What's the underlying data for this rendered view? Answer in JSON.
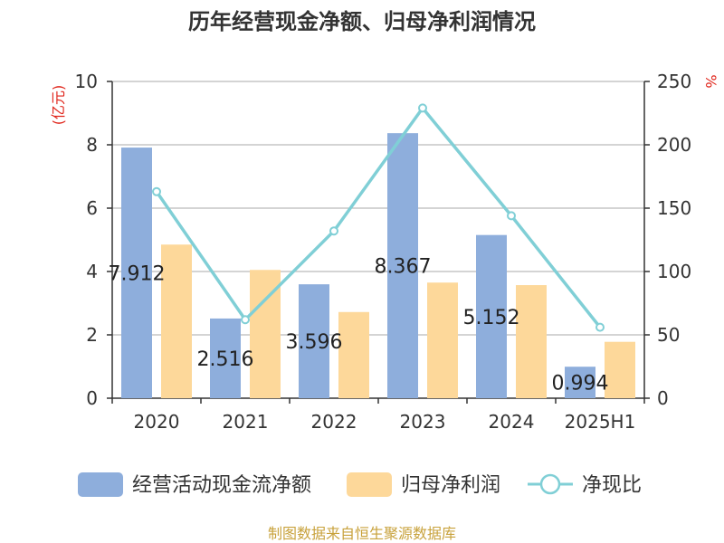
{
  "title": "历年经营现金净额、归母净利润情况",
  "source": "制图数据来自恒生聚源数据库",
  "chart_data": {
    "type": "bar",
    "categories": [
      "2020",
      "2021",
      "2022",
      "2023",
      "2024",
      "2025H1"
    ],
    "series": [
      {
        "name": "经营活动现金流净额",
        "kind": "bar",
        "axis": "left",
        "color": "#8eaedc",
        "values": [
          7.912,
          2.516,
          3.596,
          8.367,
          5.152,
          0.994
        ]
      },
      {
        "name": "归母净利润",
        "kind": "bar",
        "axis": "left",
        "color": "#fdd89a",
        "values": [
          4.85,
          4.05,
          2.72,
          3.65,
          3.57,
          1.78
        ]
      },
      {
        "name": "净现比",
        "kind": "line",
        "axis": "right",
        "color": "#80cfd6",
        "values": [
          163,
          62,
          132,
          229,
          144,
          56
        ]
      }
    ],
    "data_labels": [
      "7.912",
      "2.516",
      "3.596",
      "8.367",
      "5.152",
      "0.994"
    ],
    "y_left": {
      "label": "(亿元)",
      "range": [
        0,
        10
      ],
      "ticks": [
        "0",
        "2",
        "4",
        "6",
        "8",
        "10"
      ]
    },
    "y_right": {
      "label": "%",
      "range": [
        0,
        250
      ],
      "ticks": [
        "0",
        "50",
        "100",
        "150",
        "200",
        "250"
      ]
    },
    "grid": true,
    "legend": "bottom"
  }
}
